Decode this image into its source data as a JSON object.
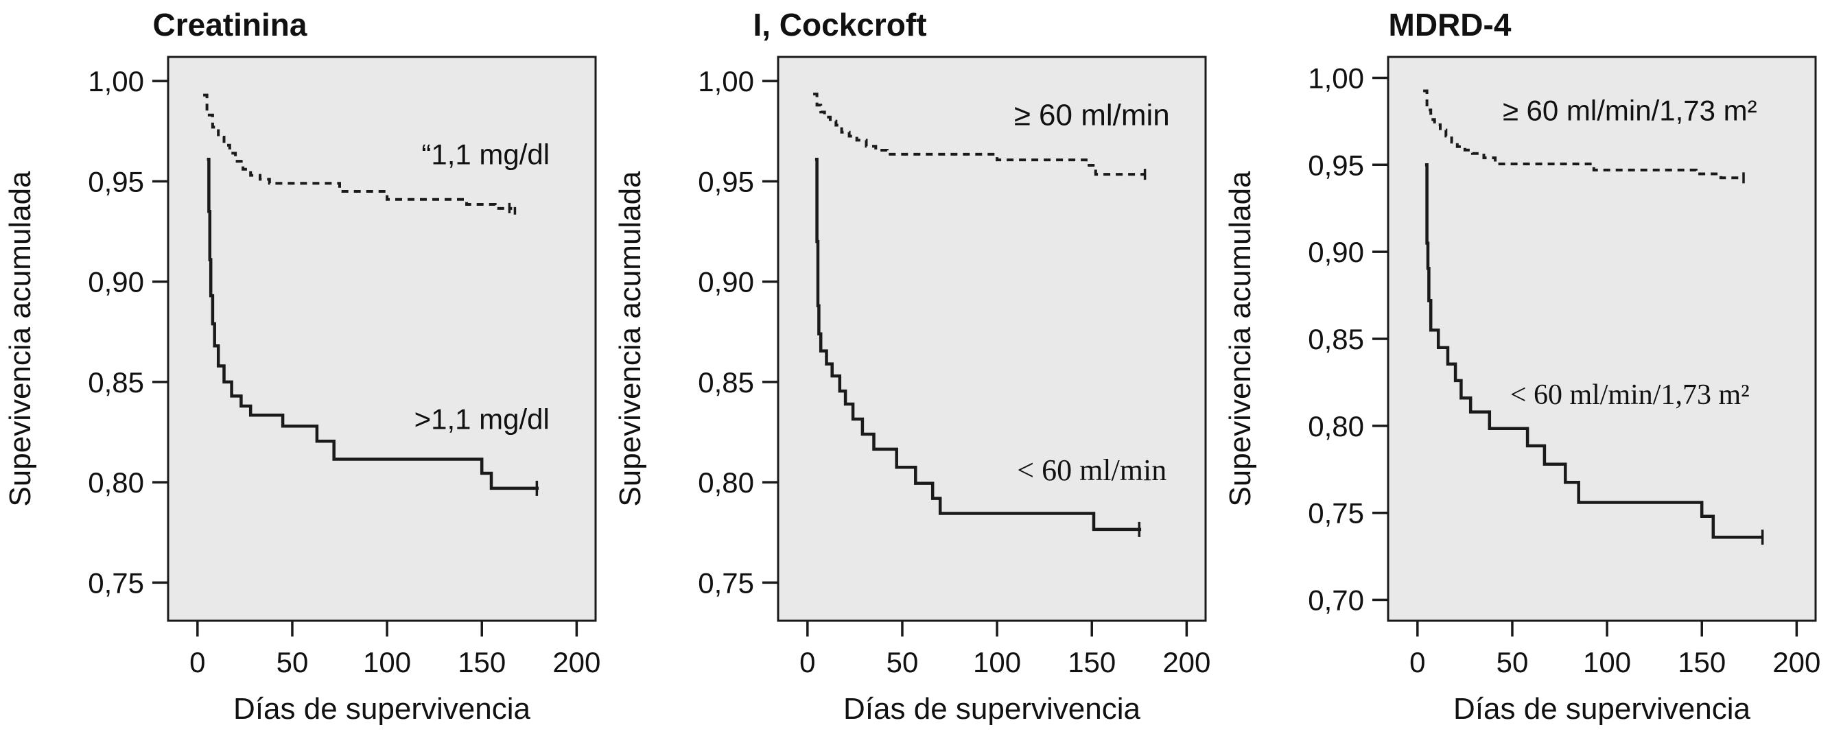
{
  "figure": {
    "background": "#ffffff",
    "plot_background": "#e9e9e9",
    "line_color": "#1a1a1a",
    "text_color": "#111111",
    "x_axis_label": "Días de supervivencia",
    "y_axis_label": "Supevivencia acumulada"
  },
  "chart_data": [
    {
      "type": "line",
      "subtype": "kaplan-meier-step",
      "title": "Creatinina",
      "xlabel": "Días de supervivencia",
      "ylabel": "Supevivencia acumulada",
      "xlim": [
        -15.5,
        210
      ],
      "ylim": [
        0.731,
        1.012
      ],
      "grid": false,
      "legend_position": "inline-annotations",
      "x_ticks": [
        0,
        50,
        100,
        150,
        200
      ],
      "x_tick_labels": [
        "0",
        "50",
        "100",
        "150",
        "200"
      ],
      "y_ticks": [
        1.0,
        0.95,
        0.9,
        0.85,
        0.8,
        0.75
      ],
      "y_tick_labels": [
        "1,00",
        "0,95",
        "0,90",
        "0,85",
        "0,80",
        "0,75"
      ],
      "series": [
        {
          "name": "“1,1 mg/dl",
          "style": "dotted",
          "label_font": "sans",
          "label_size": 42,
          "label_pos": [
            152,
            0.9585
          ],
          "steps": [
            [
              3,
              0.993
            ],
            [
              5,
              0.983
            ],
            [
              8,
              0.977
            ],
            [
              11,
              0.972
            ],
            [
              14,
              0.968
            ],
            [
              17,
              0.964
            ],
            [
              20,
              0.96
            ],
            [
              24,
              0.956
            ],
            [
              28,
              0.953
            ],
            [
              33,
              0.951
            ],
            [
              38,
              0.949
            ],
            [
              75,
              0.945
            ],
            [
              100,
              0.941
            ],
            [
              142,
              0.9385
            ],
            [
              157,
              0.9365
            ]
          ],
          "end_day": 166,
          "censor": [
            166,
            0.9365
          ],
          "censor_style": "double-tick"
        },
        {
          "name": ">1,1 mg/dl",
          "style": "solid",
          "label_font": "sans",
          "label_size": 42,
          "label_pos": [
            150,
            0.8265
          ],
          "steps": [
            [
              5,
              0.961
            ],
            [
              6,
              0.935
            ],
            [
              6.5,
              0.911
            ],
            [
              7,
              0.893
            ],
            [
              8,
              0.879
            ],
            [
              9,
              0.868
            ],
            [
              11,
              0.858
            ],
            [
              14,
              0.85
            ],
            [
              18,
              0.843
            ],
            [
              23,
              0.838
            ],
            [
              28,
              0.8335
            ],
            [
              45,
              0.828
            ],
            [
              63,
              0.8205
            ],
            [
              72,
              0.8115
            ],
            [
              150,
              0.8045
            ],
            [
              155,
              0.797
            ]
          ],
          "end_day": 180,
          "censor": [
            179,
            0.797
          ],
          "censor_style": "plus-tick"
        }
      ]
    },
    {
      "type": "line",
      "subtype": "kaplan-meier-step",
      "title": "I, Cockcroft",
      "xlabel": "Días de supervivencia",
      "ylabel": "Supevivencia acumulada",
      "xlim": [
        -15.5,
        210
      ],
      "ylim": [
        0.731,
        1.012
      ],
      "grid": false,
      "legend_position": "inline-annotations",
      "x_ticks": [
        0,
        50,
        100,
        150,
        200
      ],
      "x_tick_labels": [
        "0",
        "50",
        "100",
        "150",
        "200"
      ],
      "y_ticks": [
        1.0,
        0.95,
        0.9,
        0.85,
        0.8,
        0.75
      ],
      "y_tick_labels": [
        "1,00",
        "0,95",
        "0,90",
        "0,85",
        "0,80",
        "0,75"
      ],
      "series": [
        {
          "name": "≥ 60 ml/min",
          "style": "dotted",
          "label_font": "sans",
          "label_size": 44,
          "label_pos": [
            150,
            0.978
          ],
          "steps": [
            [
              3,
              0.9935
            ],
            [
              5,
              0.988
            ],
            [
              7,
              0.9845
            ],
            [
              9,
              0.982
            ],
            [
              12,
              0.98
            ],
            [
              15,
              0.978
            ],
            [
              18,
              0.9745
            ],
            [
              22,
              0.9725
            ],
            [
              26,
              0.9705
            ],
            [
              31,
              0.9675
            ],
            [
              36,
              0.9655
            ],
            [
              42,
              0.9635
            ],
            [
              100,
              0.9607
            ],
            [
              147,
              0.958
            ],
            [
              152,
              0.9535
            ]
          ],
          "end_day": 178,
          "censor": [
            178,
            0.9535
          ],
          "censor_style": "tick"
        },
        {
          "name": "< 60 ml/min",
          "style": "solid",
          "label_font": "serif",
          "label_size": 44,
          "label_pos": [
            150,
            0.801
          ],
          "steps": [
            [
              4,
              0.961
            ],
            [
              5,
              0.92
            ],
            [
              5.5,
              0.888
            ],
            [
              6,
              0.874
            ],
            [
              7,
              0.8655
            ],
            [
              10,
              0.859
            ],
            [
              13,
              0.853
            ],
            [
              17,
              0.8455
            ],
            [
              20,
              0.839
            ],
            [
              24,
              0.8315
            ],
            [
              29,
              0.824
            ],
            [
              35,
              0.8165
            ],
            [
              47,
              0.8075
            ],
            [
              57,
              0.7995
            ],
            [
              66,
              0.792
            ],
            [
              70,
              0.7845
            ],
            [
              151,
              0.7765
            ]
          ],
          "end_day": 176,
          "censor": [
            175,
            0.7765
          ],
          "censor_style": "plus-tick"
        }
      ]
    },
    {
      "type": "line",
      "subtype": "kaplan-meier-step",
      "title": "MDRD-4",
      "xlabel": "Días de supervivencia",
      "ylabel": "Supevivencia acumulada",
      "xlim": [
        -15.5,
        210
      ],
      "ylim": [
        0.688,
        1.012
      ],
      "grid": false,
      "legend_position": "inline-annotations",
      "x_ticks": [
        0,
        50,
        100,
        150,
        200
      ],
      "x_tick_labels": [
        "0",
        "50",
        "100",
        "150",
        "200"
      ],
      "y_ticks": [
        1.0,
        0.95,
        0.9,
        0.85,
        0.8,
        0.75,
        0.7
      ],
      "y_tick_labels": [
        "1,00",
        "0,95",
        "0,90",
        "0,85",
        "0,80",
        "0,75",
        "0,70"
      ],
      "series": [
        {
          "name": "≥ 60 ml/min/1,73 m²",
          "style": "dotted",
          "label_font": "sans",
          "label_size": 42,
          "label_pos": [
            112,
            0.9755
          ],
          "steps": [
            [
              3,
              0.9925
            ],
            [
              5,
              0.9815
            ],
            [
              7,
              0.976
            ],
            [
              9,
              0.973
            ],
            [
              12,
              0.97
            ],
            [
              15,
              0.9665
            ],
            [
              18,
              0.963
            ],
            [
              21,
              0.9605
            ],
            [
              25,
              0.9585
            ],
            [
              29,
              0.9565
            ],
            [
              35,
              0.954
            ],
            [
              41,
              0.9505
            ],
            [
              93,
              0.947
            ],
            [
              147,
              0.9448
            ],
            [
              160,
              0.9425
            ]
          ],
          "end_day": 172,
          "censor": [
            172,
            0.9425
          ],
          "censor_style": "tick"
        },
        {
          "name": "< 60 ml/min/1,73 m²",
          "style": "solid",
          "label_font": "serif",
          "label_size": 42,
          "label_pos": [
            112,
            0.8125
          ],
          "steps": [
            [
              4,
              0.95
            ],
            [
              5,
              0.905
            ],
            [
              5.5,
              0.8905
            ],
            [
              6,
              0.872
            ],
            [
              7,
              0.855
            ],
            [
              11,
              0.845
            ],
            [
              16,
              0.8355
            ],
            [
              20,
              0.826
            ],
            [
              23,
              0.816
            ],
            [
              28,
              0.808
            ],
            [
              38,
              0.7985
            ],
            [
              58,
              0.7885
            ],
            [
              67,
              0.778
            ],
            [
              78,
              0.7675
            ],
            [
              85,
              0.756
            ],
            [
              150,
              0.748
            ],
            [
              156,
              0.736
            ]
          ],
          "end_day": 182,
          "censor": [
            182,
            0.736
          ],
          "censor_style": "plus-tick"
        }
      ]
    }
  ]
}
